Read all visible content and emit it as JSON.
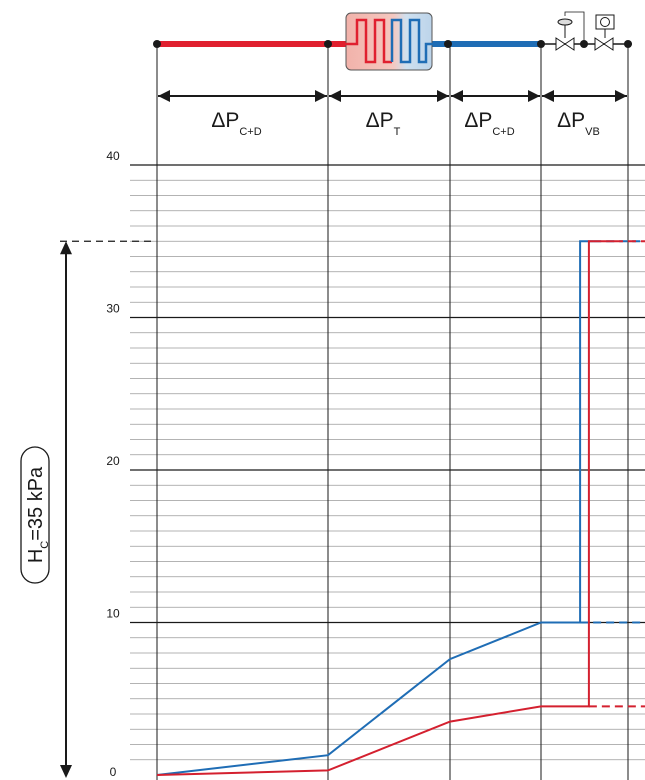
{
  "chart_data": {
    "type": "line",
    "title": "",
    "ylabel": "",
    "ylim": [
      0,
      40
    ],
    "y_ticks": [
      {
        "value": 0,
        "label": "0"
      },
      {
        "value": 10,
        "label": "10"
      },
      {
        "value": 20,
        "label": "20"
      },
      {
        "value": 30,
        "label": "30"
      },
      {
        "value": 40,
        "label": "40"
      }
    ],
    "minor_grid_step": 1,
    "sections": [
      {
        "id": "pipe-supply",
        "label": "ΔP",
        "subscript": "C+D"
      },
      {
        "id": "terminal",
        "label": "ΔP",
        "subscript": "T"
      },
      {
        "id": "pipe-return",
        "label": "ΔP",
        "subscript": "C+D"
      },
      {
        "id": "valves",
        "label": "ΔP",
        "subscript": "VB"
      }
    ],
    "head_annotation": {
      "label": "H",
      "subscript": "C",
      "suffix": "=35 kPa",
      "value": 35
    },
    "series": [
      {
        "color": "#1f6db5",
        "points": [
          {
            "boundary": 0,
            "y": 0
          },
          {
            "boundary": 1,
            "y": 1.3
          },
          {
            "boundary": 2,
            "y": 7.6
          },
          {
            "boundary": 3,
            "y": 10
          },
          {
            "boundary": 3.45,
            "y": 10
          },
          {
            "boundary": 3.45,
            "y": 35
          },
          {
            "boundary": 3.6,
            "y": 35
          }
        ],
        "dashed_tail": [
          {
            "boundary": 3.6,
            "y": 35
          },
          {
            "boundary": 4.2,
            "y": 35
          }
        ],
        "dashed_level": {
          "from_boundary": 3.45,
          "y": 10
        }
      },
      {
        "color": "#d4202f",
        "points": [
          {
            "boundary": 0,
            "y": 0
          },
          {
            "boundary": 1,
            "y": 0.3
          },
          {
            "boundary": 2,
            "y": 3.5
          },
          {
            "boundary": 3,
            "y": 4.5
          },
          {
            "boundary": 3.55,
            "y": 4.5
          },
          {
            "boundary": 3.55,
            "y": 35
          },
          {
            "boundary": 3.85,
            "y": 35
          }
        ],
        "dashed_tail": [
          {
            "boundary": 3.85,
            "y": 35
          },
          {
            "boundary": 4.2,
            "y": 35
          }
        ],
        "dashed_level": {
          "from_boundary": 3.55,
          "y": 4.5
        }
      }
    ],
    "colors": {
      "supply_pipe": "#e0202f",
      "return_pipe": "#1f6db5",
      "terminal_fill": "#f2b8b0",
      "terminal_fill_right": "#cde0f0",
      "grid_major": "#1a1a1a",
      "grid_minor": "#9a9a9a"
    }
  }
}
